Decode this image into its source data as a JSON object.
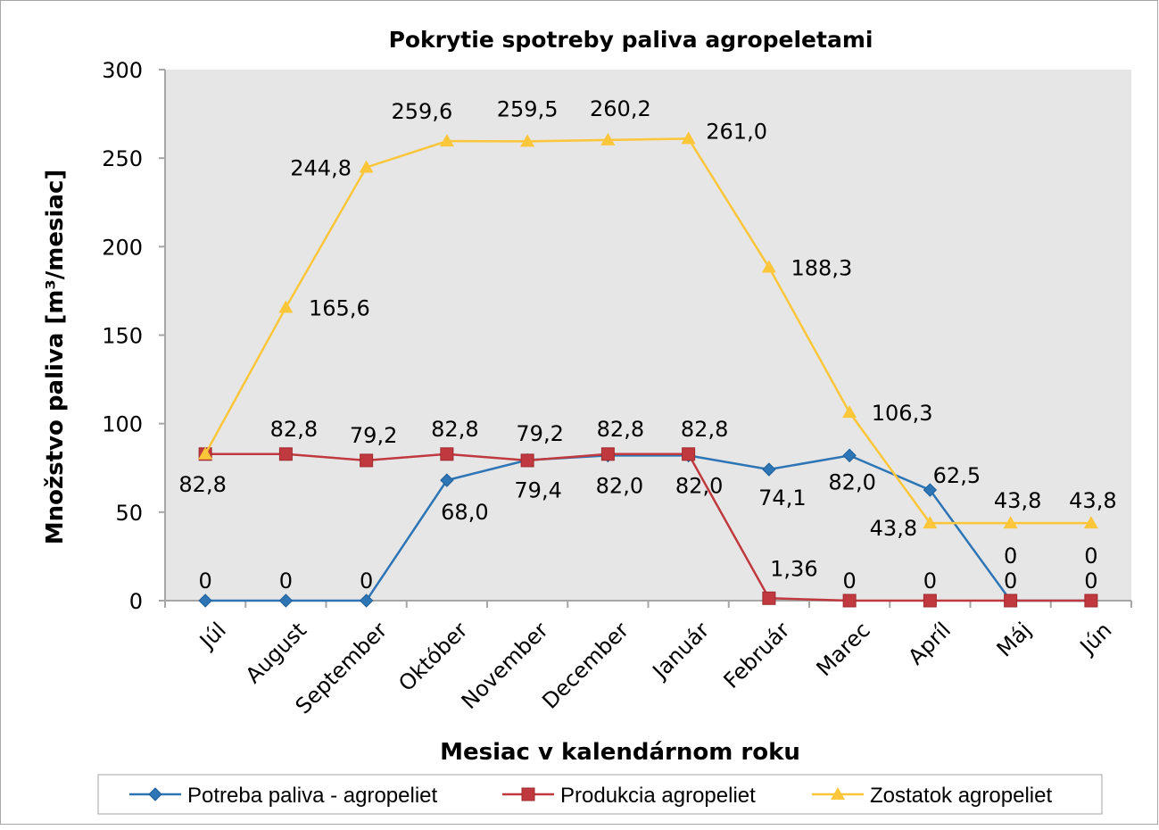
{
  "chart_data": {
    "type": "line",
    "title": "Pokrytie spotreby paliva agropeletami",
    "xlabel": "Mesiac v kalendárnom roku",
    "ylabel": "Množstvo paliva [m³/mesiac]",
    "ylim": [
      0,
      300
    ],
    "yticks": [
      0,
      50,
      100,
      150,
      200,
      250,
      300
    ],
    "grid": false,
    "legend": "bottom",
    "categories": [
      "Júl",
      "August",
      "September",
      "Október",
      "November",
      "December",
      "Január",
      "Február",
      "Marec",
      "Apríl",
      "Máj",
      "Jún"
    ],
    "series": [
      {
        "name": "Potreba paliva - agropeliet",
        "color": "#2e75b6",
        "marker": "diamond",
        "values": [
          0,
          0,
          0,
          68.0,
          79.4,
          82.0,
          82.0,
          74.1,
          82.0,
          62.5,
          0,
          0
        ],
        "labels": [
          "0",
          "0",
          "0",
          "68,0",
          "79,4",
          "82,0",
          "82,0",
          "74,1",
          "82,0",
          "62,5",
          "0",
          "0"
        ]
      },
      {
        "name": "Produkcia agropeliet",
        "color": "#c0393f",
        "marker": "square",
        "values": [
          82.8,
          82.8,
          79.2,
          82.8,
          79.2,
          82.8,
          82.8,
          1.36,
          0,
          0,
          0,
          0
        ],
        "labels": [
          "82,8",
          "82,8",
          "79,2",
          "82,8",
          "79,2",
          "82,8",
          "82,8",
          "1,36",
          "0",
          "0",
          "0",
          "0"
        ]
      },
      {
        "name": "Zostatok agropeliet",
        "color": "#fcc63a",
        "marker": "triangle",
        "values": [
          82.8,
          165.6,
          244.8,
          259.6,
          259.5,
          260.2,
          261.0,
          188.3,
          106.3,
          43.8,
          43.8,
          43.8
        ],
        "labels": [
          "82,8",
          "165,6",
          "244,8",
          "259,6",
          "259,5",
          "260,2",
          "261,0",
          "188,3",
          "106,3",
          "43,8",
          "43,8",
          "43,8"
        ]
      }
    ],
    "plot_background": "#e6e6e6"
  }
}
